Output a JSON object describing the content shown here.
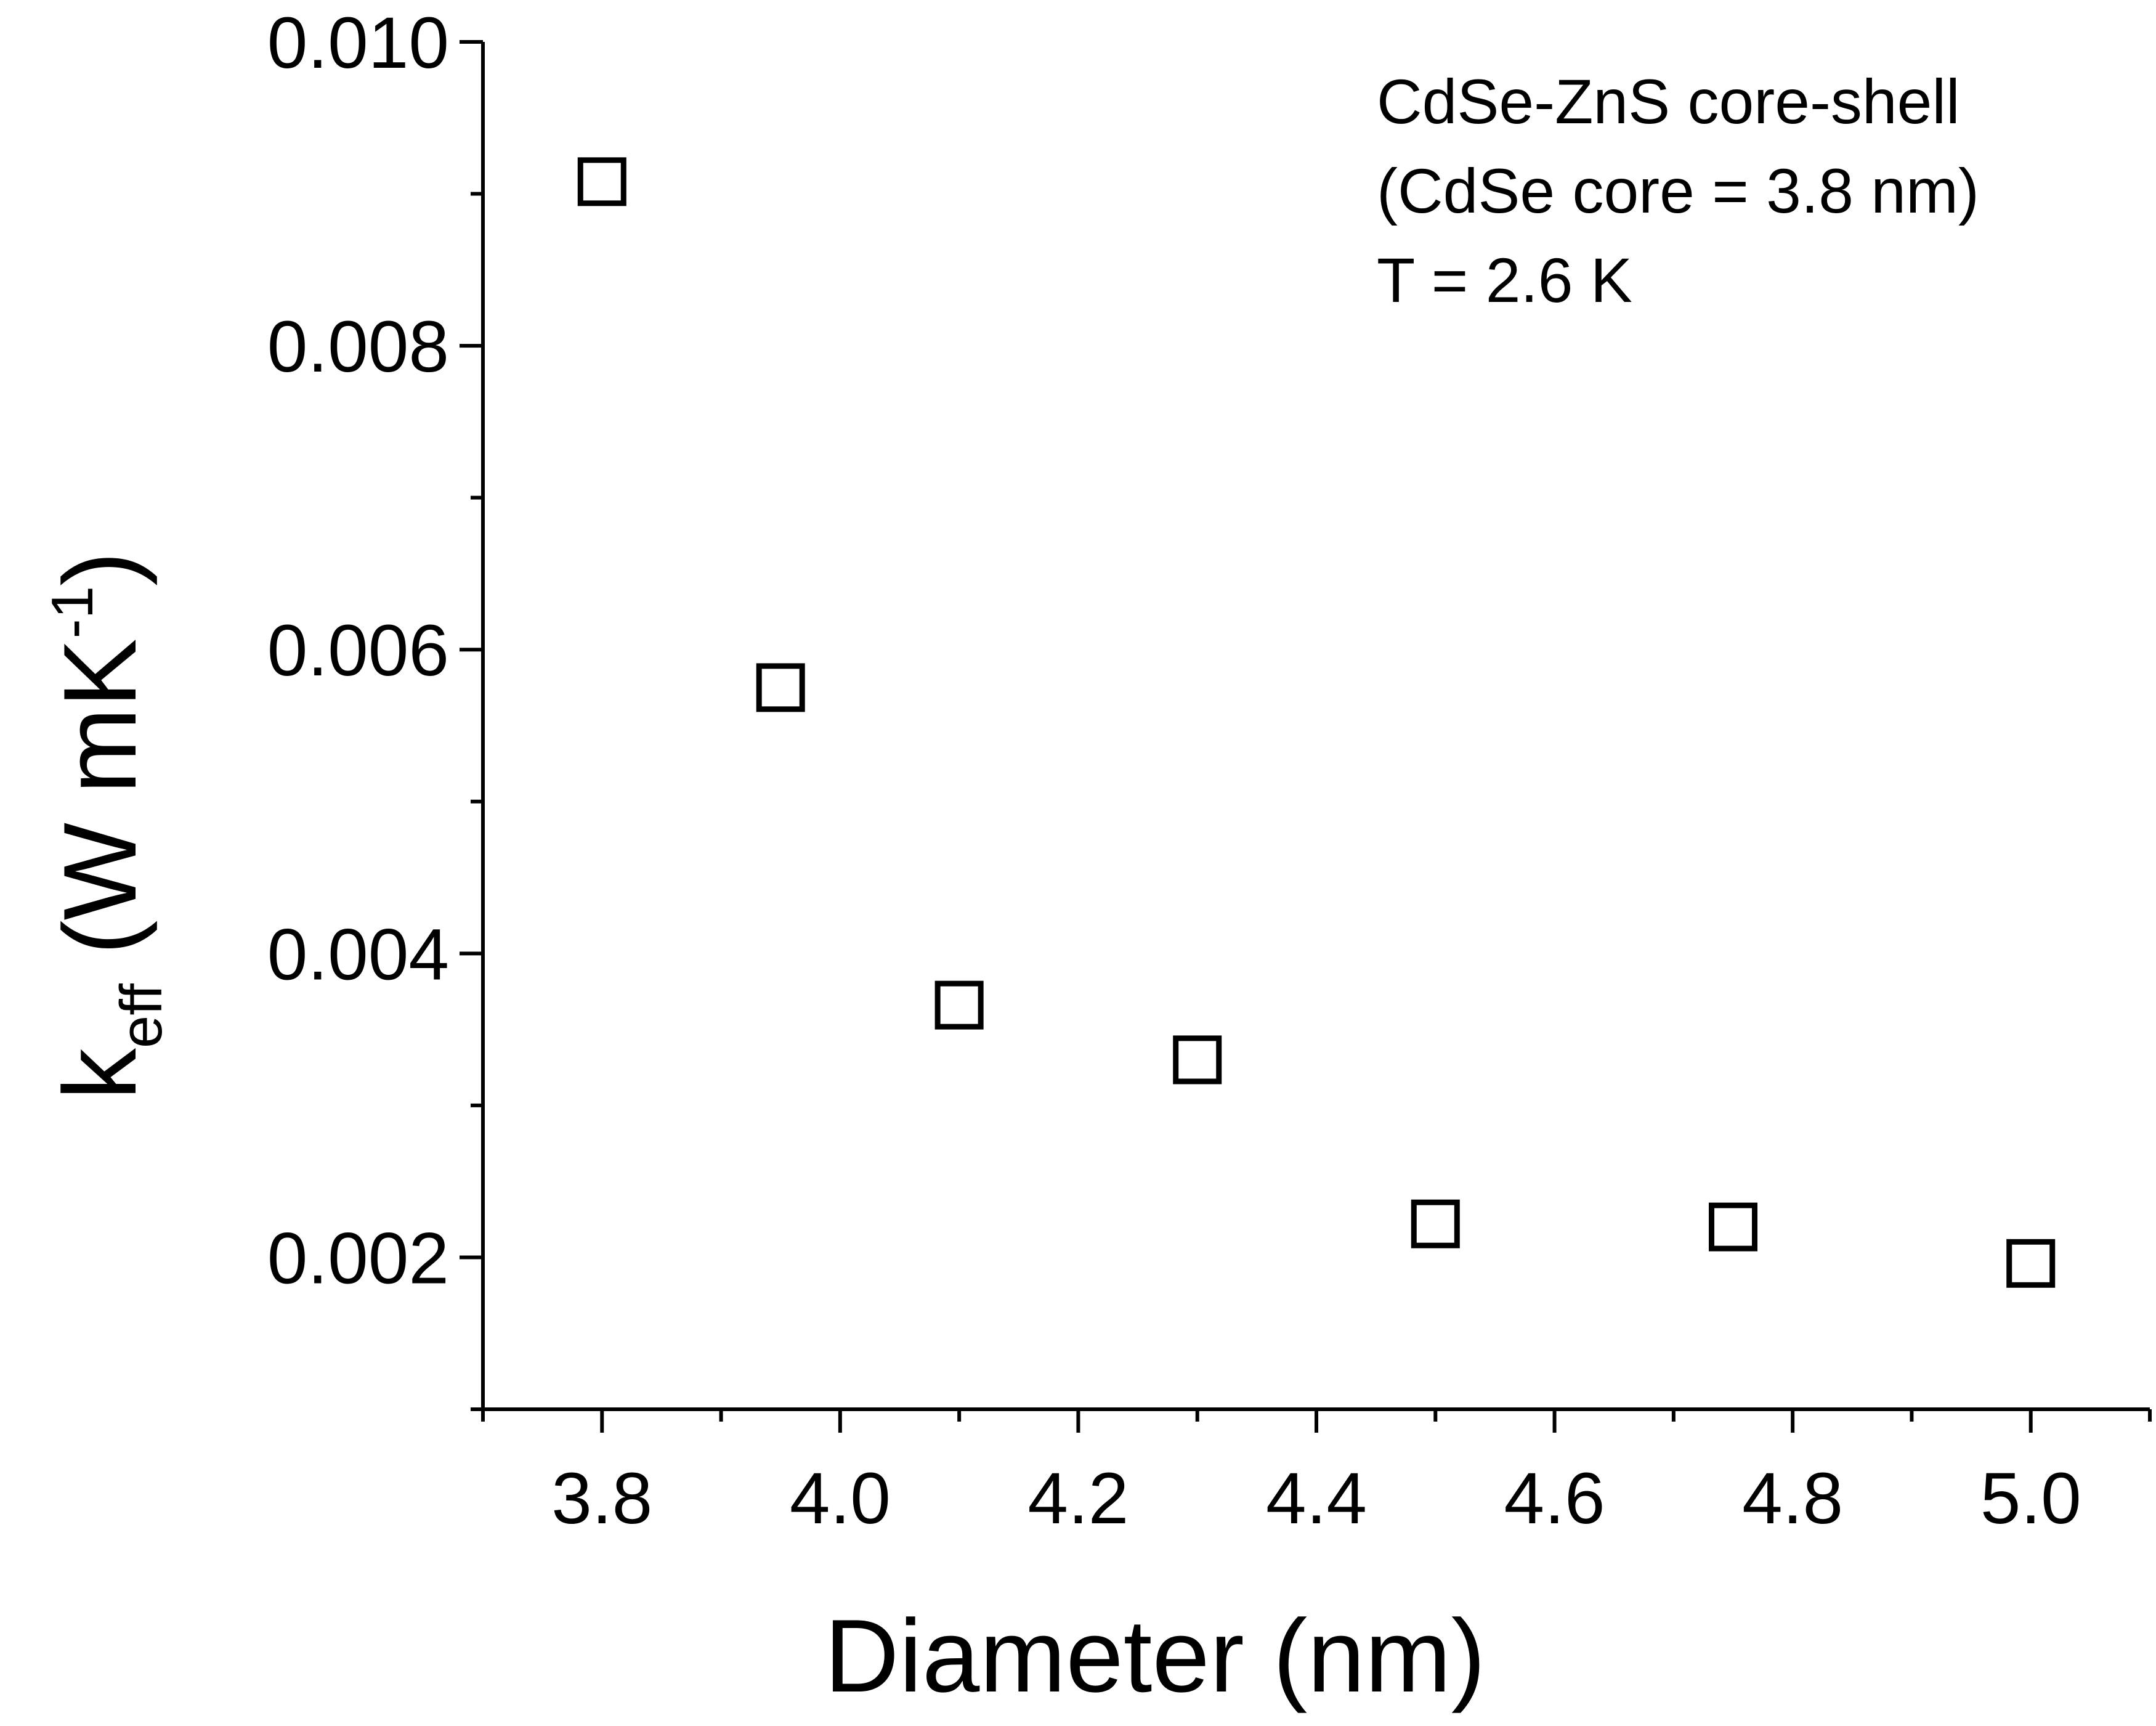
{
  "chart_data": {
    "type": "scatter",
    "title": "",
    "xlabel": "Diameter (nm)",
    "ylabel": {
      "base": "k",
      "subscript": "eff",
      "units_prefix": " (W mK",
      "superscript": "-1"
    },
    "xlim": [
      3.7,
      5.1
    ],
    "ylim": [
      0.001,
      0.01
    ],
    "x_major_ticks": [
      3.8,
      4.0,
      4.2,
      4.4,
      4.6,
      4.8,
      5.0
    ],
    "x_tick_labels": [
      "3.8",
      "4.0",
      "4.2",
      "4.4",
      "4.6",
      "4.8",
      "5.0"
    ],
    "x_minor_ticks": [
      3.7,
      3.9,
      4.1,
      4.3,
      4.5,
      4.7,
      4.9,
      5.1
    ],
    "y_major_ticks": [
      0.002,
      0.004,
      0.006,
      0.008,
      0.01
    ],
    "y_tick_labels": [
      "0.002",
      "0.004",
      "0.006",
      "0.008",
      "0.010"
    ],
    "y_minor_ticks": [
      0.001,
      0.003,
      0.005,
      0.007,
      0.009
    ],
    "grid": false,
    "marker": "open-square",
    "series": [
      {
        "x": [
          3.8,
          3.95,
          4.1,
          4.3,
          4.5,
          4.75,
          5.0
        ],
        "y": [
          0.00908,
          0.00575,
          0.00366,
          0.0033,
          0.00222,
          0.0022,
          0.00196
        ]
      }
    ],
    "annotations": [
      "CdSe-ZnS core-shell",
      "(CdSe core = 3.8 nm)",
      "T = 2.6 K"
    ]
  }
}
